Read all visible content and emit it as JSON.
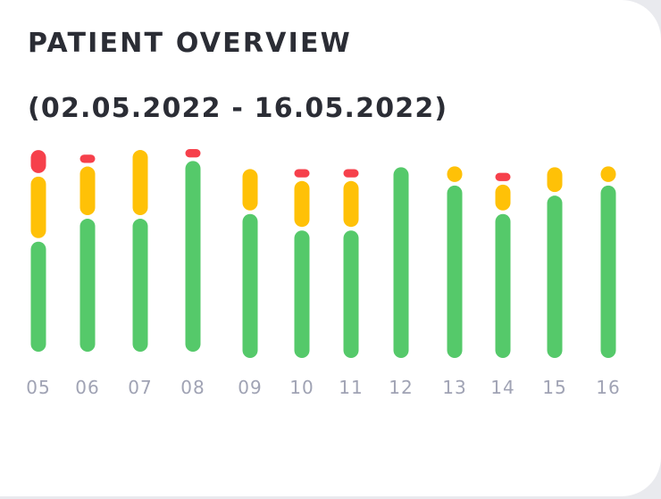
{
  "card": {
    "title": "PATIENT OVERVIEW",
    "subtitle": "(02.05.2022 - 16.05.2022)"
  },
  "chart_data": {
    "type": "bar",
    "stacked": true,
    "categories": [
      "05",
      "06",
      "07",
      "08",
      "09",
      "10",
      "11",
      "12",
      "13",
      "14",
      "15",
      "16"
    ],
    "series": [
      {
        "color": "#55c96a",
        "values": [
          12.0,
          14.5,
          14.5,
          20.8,
          15.7,
          13.9,
          13.9,
          20.8,
          18.8,
          15.7,
          17.7,
          18.8
        ]
      },
      {
        "color": "#ffc107",
        "values": [
          6.9,
          5.5,
          7.3,
          0,
          4.7,
          5.2,
          5.2,
          0,
          1.9,
          3.0,
          2.9,
          1.9
        ]
      },
      {
        "color": "#f6404b",
        "values": [
          2.7,
          1.1,
          0,
          1.1,
          0,
          1.1,
          1.1,
          0,
          0,
          1.1,
          0,
          0
        ]
      }
    ],
    "ylim": [
      0,
      22
    ],
    "grid": false,
    "legend": "none"
  }
}
